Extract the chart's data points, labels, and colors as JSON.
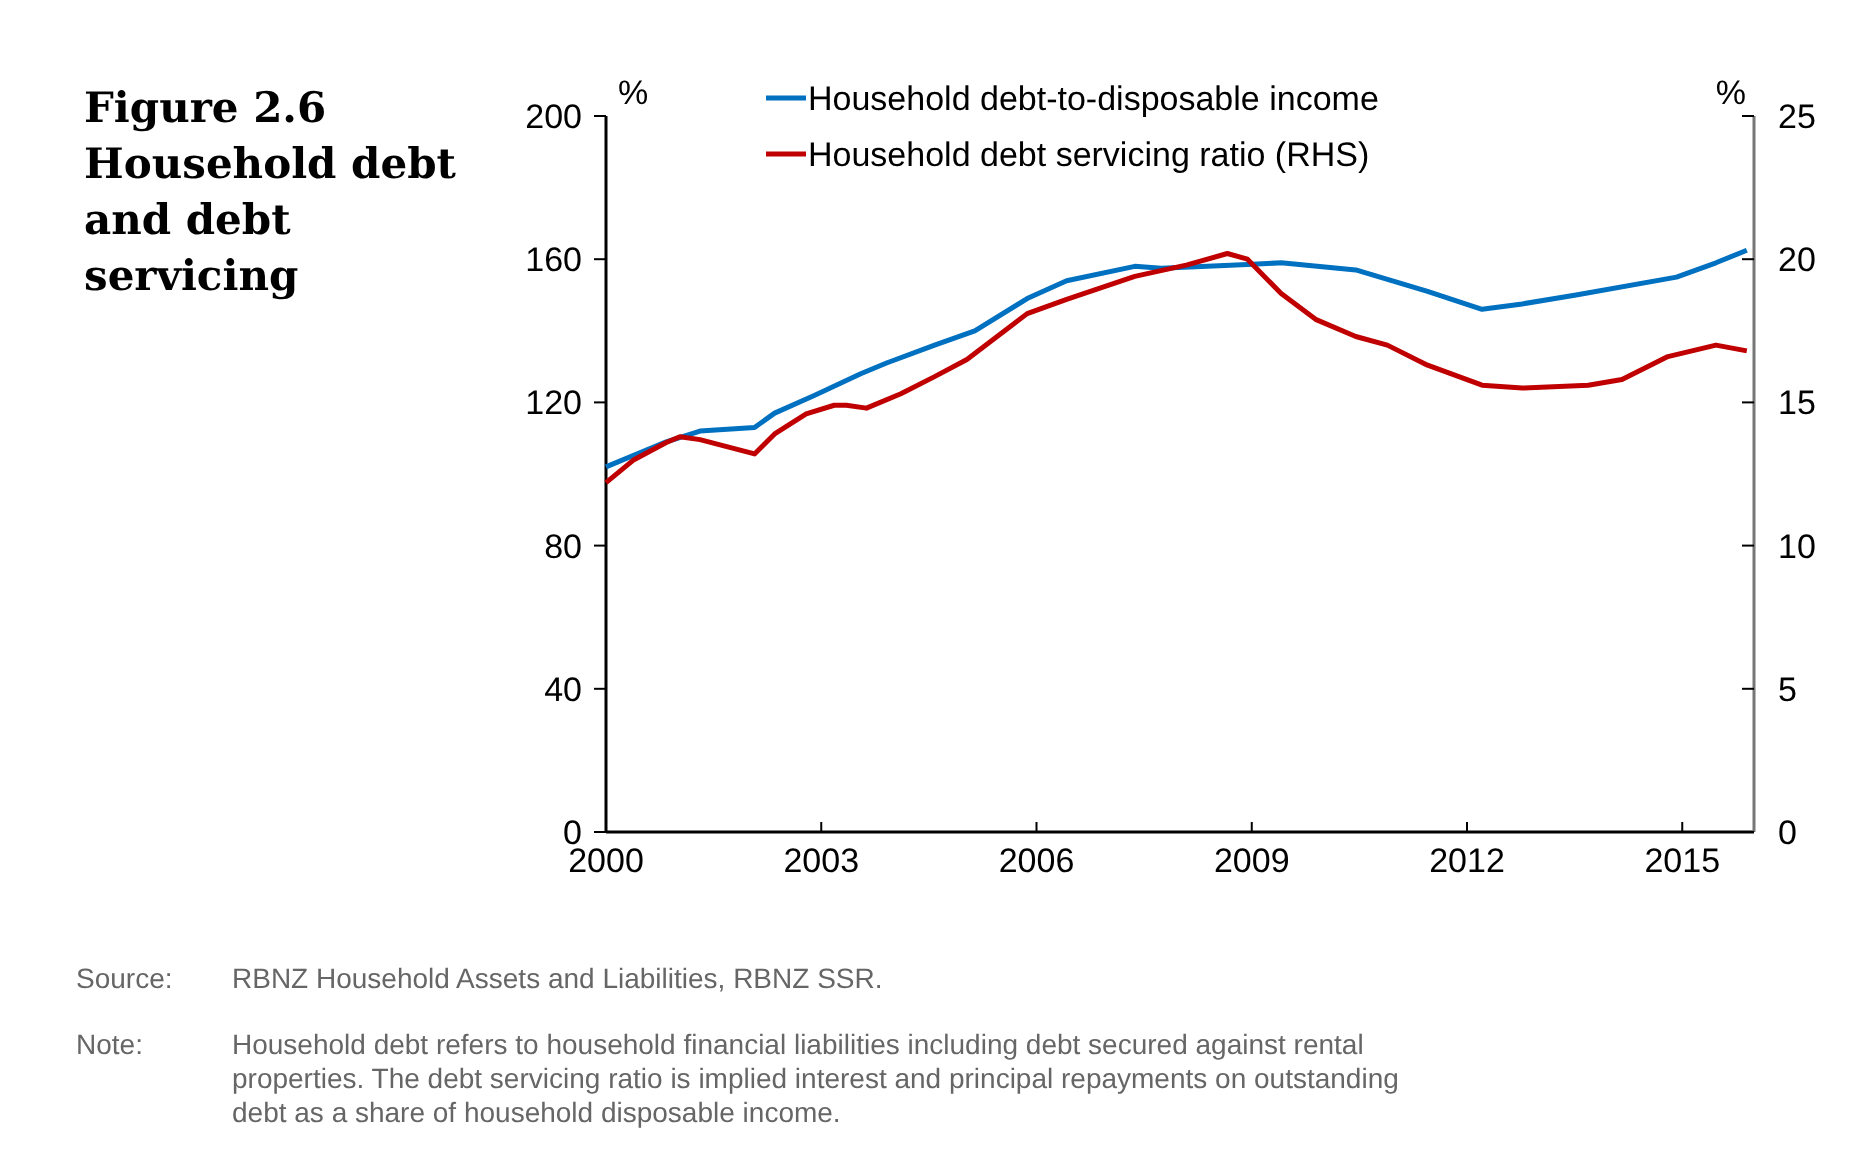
{
  "chart_data": {
    "type": "line",
    "title": "Figure 2.6 Household debt and debt servicing",
    "ylabel": "%",
    "y2label": "%",
    "xlim": [
      2000,
      2016
    ],
    "xticks": [
      2000,
      2003,
      2006,
      2009,
      2012,
      2015
    ],
    "ylim": [
      0,
      200
    ],
    "yticks": [
      0,
      40,
      80,
      120,
      160,
      200
    ],
    "y2lim": [
      0,
      25
    ],
    "y2ticks": [
      0,
      5,
      10,
      15,
      20,
      25
    ],
    "grid": false,
    "legend": "top",
    "marker": "none",
    "line_style": "solid",
    "series": [
      {
        "name": "Household debt-to-disposable income",
        "color": "#0070c0",
        "x": [
          2000.0,
          2000.84,
          2001.31,
          2002.07,
          2002.35,
          2002.91,
          2003.55,
          2003.91,
          2004.58,
          2005.14,
          2005.87,
          2006.42,
          2007.37,
          2007.74,
          2008.94,
          2009.41,
          2010.45,
          2011.45,
          2012.21,
          2012.77,
          2013.52,
          2014.92,
          2015.47,
          2015.9
        ],
        "values": [
          102,
          109,
          112,
          113,
          117,
          122,
          128,
          131,
          136,
          140,
          149,
          154,
          158,
          157.5,
          158.5,
          159,
          157,
          151,
          146,
          147.5,
          150,
          155,
          159,
          162.5
        ]
      },
      {
        "name": "Household debt servicing ratio (RHS)",
        "color": "#c00000",
        "axis": "y2",
        "x": [
          2000.0,
          2000.39,
          2000.84,
          2001.03,
          2001.31,
          2002.07,
          2002.35,
          2002.79,
          2003.18,
          2003.35,
          2003.63,
          2004.11,
          2004.58,
          2005.03,
          2005.87,
          2006.42,
          2007.37,
          2008.1,
          2008.66,
          2008.94,
          2009.41,
          2009.89,
          2010.45,
          2010.89,
          2011.45,
          2012.21,
          2012.77,
          2013.69,
          2014.16,
          2014.8,
          2015.47,
          2015.9
        ],
        "values": [
          12.2,
          13.0,
          13.6,
          13.8,
          13.7,
          13.2,
          13.9,
          14.6,
          14.9,
          14.9,
          14.8,
          15.3,
          15.9,
          16.5,
          18.1,
          18.6,
          19.4,
          19.8,
          20.2,
          20.0,
          18.8,
          17.9,
          17.3,
          17.0,
          16.3,
          15.6,
          15.5,
          15.6,
          15.8,
          16.6,
          17.0,
          16.8
        ]
      }
    ],
    "annotations": [
      "Source: RBNZ Household Assets and Liabilities, RBNZ SSR.",
      "Note: Household debt refers to household financial liabilities including debt secured against rental properties. The debt servicing ratio is implied interest and principal repayments on outstanding debt as a share of household disposable income."
    ]
  }
}
